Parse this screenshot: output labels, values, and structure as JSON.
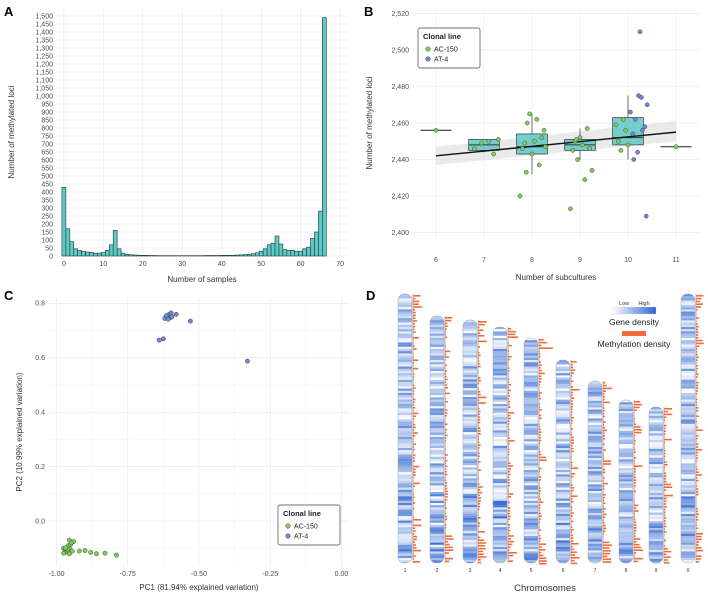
{
  "panels": {
    "a": {
      "letter": "A"
    },
    "b": {
      "letter": "B"
    },
    "c": {
      "letter": "C"
    },
    "d": {
      "letter": "D"
    }
  },
  "chart_data": [
    {
      "id": "A",
      "type": "bar",
      "xlabel": "Number of samples",
      "ylabel": "Number of methylated loci",
      "xlim": [
        -2,
        72
      ],
      "ylim": [
        0,
        1550
      ],
      "xticks": [
        0,
        10,
        20,
        30,
        40,
        50,
        60,
        70
      ],
      "yticks": [
        0,
        50,
        100,
        150,
        200,
        250,
        300,
        350,
        400,
        450,
        500,
        550,
        600,
        650,
        700,
        750,
        800,
        850,
        900,
        950,
        1000,
        1050,
        1100,
        1150,
        1200,
        1250,
        1300,
        1350,
        1400,
        1450,
        1500
      ],
      "ytick_labels": [
        "0",
        "50",
        "100",
        "150",
        "200",
        "250",
        "300",
        "350",
        "400",
        "450",
        "500",
        "550",
        "600",
        "650",
        "700",
        "750",
        "800",
        "850",
        "900",
        "950",
        "1,000",
        "1,050",
        "1,100",
        "1,150",
        "1,200",
        "1,250",
        "1,300",
        "1,350",
        "1,400",
        "1,450",
        "1,500"
      ],
      "bar_color": "#5ec8c4",
      "x": [
        0,
        1,
        2,
        3,
        4,
        5,
        6,
        7,
        8,
        9,
        10,
        11,
        12,
        13,
        14,
        15,
        16,
        17,
        18,
        19,
        20,
        21,
        22,
        23,
        24,
        25,
        26,
        27,
        28,
        29,
        30,
        31,
        32,
        33,
        34,
        35,
        36,
        37,
        38,
        39,
        40,
        41,
        42,
        43,
        44,
        45,
        46,
        47,
        48,
        49,
        50,
        51,
        52,
        53,
        54,
        55,
        56,
        57,
        58,
        59,
        60,
        61,
        62,
        63,
        64,
        65,
        66,
        67,
        68
      ],
      "values": [
        430,
        170,
        90,
        45,
        35,
        28,
        25,
        22,
        18,
        18,
        22,
        35,
        70,
        160,
        45,
        18,
        10,
        8,
        6,
        5,
        4,
        4,
        3,
        3,
        2,
        2,
        2,
        2,
        2,
        2,
        2,
        2,
        2,
        2,
        2,
        2,
        3,
        3,
        3,
        3,
        4,
        4,
        4,
        5,
        6,
        7,
        9,
        10,
        14,
        20,
        30,
        45,
        70,
        80,
        125,
        75,
        40,
        35,
        35,
        30,
        30,
        45,
        55,
        110,
        150,
        280,
        1490,
        0,
        0
      ]
    },
    {
      "id": "B",
      "type": "box",
      "xlabel": "Number of subcultures",
      "ylabel": "Number of methylated loci",
      "xlim": [
        5.5,
        11.5
      ],
      "ylim": [
        2397,
        2523
      ],
      "xticks": [
        6,
        7,
        8,
        9,
        10,
        11
      ],
      "yticks": [
        2400,
        2420,
        2440,
        2460,
        2480,
        2500,
        2520
      ],
      "ytick_labels": [
        "2,400",
        "2,420",
        "2,440",
        "2,460",
        "2,480",
        "2,500",
        "2,520"
      ],
      "box_color": "#5ec8c4",
      "boxes": [
        {
          "x": 6,
          "q1": 2456,
          "median": 2456,
          "q3": 2456,
          "low": 2456,
          "high": 2456
        },
        {
          "x": 7,
          "q1": 2445,
          "median": 2448,
          "q3": 2451,
          "low": 2444,
          "high": 2451
        },
        {
          "x": 8,
          "q1": 2443,
          "median": 2447,
          "q3": 2454,
          "low": 2432,
          "high": 2465
        },
        {
          "x": 9,
          "q1": 2445,
          "median": 2448,
          "q3": 2451,
          "low": 2440,
          "high": 2457
        },
        {
          "x": 10,
          "q1": 2448,
          "median": 2452,
          "q3": 2463,
          "low": 2440,
          "high": 2475
        },
        {
          "x": 11,
          "q1": 2447,
          "median": 2447,
          "q3": 2447,
          "low": 2447,
          "high": 2447
        }
      ],
      "trend": {
        "x": [
          6,
          11
        ],
        "y": [
          2442,
          2455
        ],
        "ci_low": [
          2437,
          2450
        ],
        "ci_high": [
          2447,
          2461
        ]
      },
      "legend": {
        "title": "Clonal line",
        "entries": [
          {
            "label": "AC-150",
            "color": "#7ccc5a"
          },
          {
            "label": "AT-4",
            "color": "#6f86d6"
          }
        ]
      },
      "points": [
        {
          "x": 6.0,
          "y": 2456,
          "line": "AC-150"
        },
        {
          "x": 6.8,
          "y": 2446,
          "line": "AC-150"
        },
        {
          "x": 6.95,
          "y": 2449,
          "line": "AC-150"
        },
        {
          "x": 7.1,
          "y": 2450,
          "line": "AC-150"
        },
        {
          "x": 7.2,
          "y": 2443,
          "line": "AC-150"
        },
        {
          "x": 7.3,
          "y": 2451,
          "line": "AC-150"
        },
        {
          "x": 7.75,
          "y": 2420,
          "line": "AC-150"
        },
        {
          "x": 7.8,
          "y": 2446,
          "line": "AC-150"
        },
        {
          "x": 7.85,
          "y": 2449,
          "line": "AC-150"
        },
        {
          "x": 7.9,
          "y": 2460,
          "line": "AC-150"
        },
        {
          "x": 7.95,
          "y": 2465,
          "line": "AC-150"
        },
        {
          "x": 8.0,
          "y": 2443,
          "line": "AC-150"
        },
        {
          "x": 8.05,
          "y": 2450,
          "line": "AC-150"
        },
        {
          "x": 8.1,
          "y": 2462,
          "line": "AC-150"
        },
        {
          "x": 8.15,
          "y": 2437,
          "line": "AC-150"
        },
        {
          "x": 8.2,
          "y": 2452,
          "line": "AC-150"
        },
        {
          "x": 8.25,
          "y": 2456,
          "line": "AC-150"
        },
        {
          "x": 7.88,
          "y": 2433,
          "line": "AC-150"
        },
        {
          "x": 8.28,
          "y": 2447,
          "line": "AC-150"
        },
        {
          "x": 8.8,
          "y": 2413,
          "line": "AC-150"
        },
        {
          "x": 8.85,
          "y": 2445,
          "line": "AC-150"
        },
        {
          "x": 8.9,
          "y": 2450,
          "line": "AC-150"
        },
        {
          "x": 8.95,
          "y": 2440,
          "line": "AC-150"
        },
        {
          "x": 9.0,
          "y": 2452,
          "line": "AC-150"
        },
        {
          "x": 9.05,
          "y": 2448,
          "line": "AC-150"
        },
        {
          "x": 9.1,
          "y": 2429,
          "line": "AC-150"
        },
        {
          "x": 9.15,
          "y": 2457,
          "line": "AC-150"
        },
        {
          "x": 9.2,
          "y": 2446,
          "line": "AC-150"
        },
        {
          "x": 9.25,
          "y": 2434,
          "line": "AC-150"
        },
        {
          "x": 8.92,
          "y": 2451,
          "line": "AC-150"
        },
        {
          "x": 9.75,
          "y": 2459,
          "line": "AC-150"
        },
        {
          "x": 9.8,
          "y": 2450,
          "line": "AC-150"
        },
        {
          "x": 9.85,
          "y": 2445,
          "line": "AC-150"
        },
        {
          "x": 9.9,
          "y": 2462,
          "line": "AC-150"
        },
        {
          "x": 9.95,
          "y": 2456,
          "line": "AC-150"
        },
        {
          "x": 10.0,
          "y": 2448,
          "line": "AC-150"
        },
        {
          "x": 10.05,
          "y": 2466,
          "line": "AT-4"
        },
        {
          "x": 10.1,
          "y": 2454,
          "line": "AT-4"
        },
        {
          "x": 10.15,
          "y": 2462,
          "line": "AT-4"
        },
        {
          "x": 10.2,
          "y": 2444,
          "line": "AT-4"
        },
        {
          "x": 10.22,
          "y": 2475,
          "line": "AT-4"
        },
        {
          "x": 10.25,
          "y": 2510,
          "line": "AT-4"
        },
        {
          "x": 10.28,
          "y": 2474,
          "line": "AT-4"
        },
        {
          "x": 10.3,
          "y": 2456,
          "line": "AT-4"
        },
        {
          "x": 10.35,
          "y": 2458,
          "line": "AT-4"
        },
        {
          "x": 10.38,
          "y": 2409,
          "line": "AT-4"
        },
        {
          "x": 10.4,
          "y": 2470,
          "line": "AT-4"
        },
        {
          "x": 10.12,
          "y": 2440,
          "line": "AT-4"
        },
        {
          "x": 11.0,
          "y": 2447,
          "line": "AC-150"
        }
      ]
    },
    {
      "id": "C",
      "type": "scatter",
      "xlabel": "PC1 (81.94% explained variation)",
      "ylabel": "PC2 (10.99% explained variation)",
      "xlim": [
        -1.03,
        0.03
      ],
      "ylim": [
        -0.165,
        0.82
      ],
      "xticks": [
        -1.0,
        -0.75,
        -0.5,
        -0.25,
        0.0
      ],
      "xtick_labels": [
        "-1.00",
        "-0.75",
        "-0.50",
        "-0.25",
        "0.00"
      ],
      "yticks": [
        0.0,
        0.2,
        0.4,
        0.6,
        0.8
      ],
      "ytick_labels": [
        "0.0",
        "0.2",
        "0.4",
        "0.6",
        "0.8"
      ],
      "legend": {
        "title": "Clonal line",
        "entries": [
          {
            "label": "AC-150",
            "color": "#7ccc5a"
          },
          {
            "label": "AT-4",
            "color": "#6f86d6"
          }
        ]
      },
      "series": [
        {
          "name": "AC-150",
          "color": "#7ccc5a",
          "x": [
            -0.975,
            -0.97,
            -0.965,
            -0.96,
            -0.955,
            -0.965,
            -0.97,
            -0.96,
            -0.975,
            -0.958,
            -0.962,
            -0.968,
            -0.95,
            -0.94,
            -0.955,
            -0.945,
            -0.92,
            -0.9,
            -0.88,
            -0.86,
            -0.83,
            -0.79,
            -0.955,
            -0.948
          ],
          "y": [
            -0.1,
            -0.105,
            -0.11,
            -0.095,
            -0.1,
            -0.112,
            -0.115,
            -0.108,
            -0.118,
            -0.09,
            -0.102,
            -0.098,
            -0.085,
            -0.075,
            -0.12,
            -0.11,
            -0.11,
            -0.108,
            -0.115,
            -0.12,
            -0.118,
            -0.125,
            -0.07,
            -0.08
          ]
        },
        {
          "name": "AT-4",
          "color": "#6f86d6",
          "x": [
            -0.62,
            -0.61,
            -0.605,
            -0.6,
            -0.615,
            -0.608,
            -0.598,
            -0.595,
            -0.58,
            -0.64,
            -0.625,
            -0.53,
            -0.33
          ],
          "y": [
            0.745,
            0.75,
            0.76,
            0.748,
            0.755,
            0.742,
            0.765,
            0.752,
            0.76,
            0.665,
            0.67,
            0.735,
            0.588
          ]
        }
      ]
    },
    {
      "id": "D",
      "type": "heatmap",
      "xlabel": "Chromosomes",
      "chromosomes": [
        "1",
        "2",
        "3",
        "4",
        "5",
        "6",
        "7",
        "8",
        "9",
        "X"
      ],
      "legend": {
        "low": "Low",
        "high": "High",
        "gene_density": "Gene density",
        "methylation_density": "Methylation density"
      },
      "colors": {
        "gene_low": "#ffffff",
        "gene_high": "#2f66d0",
        "methylation": "#f26b38"
      }
    }
  ]
}
